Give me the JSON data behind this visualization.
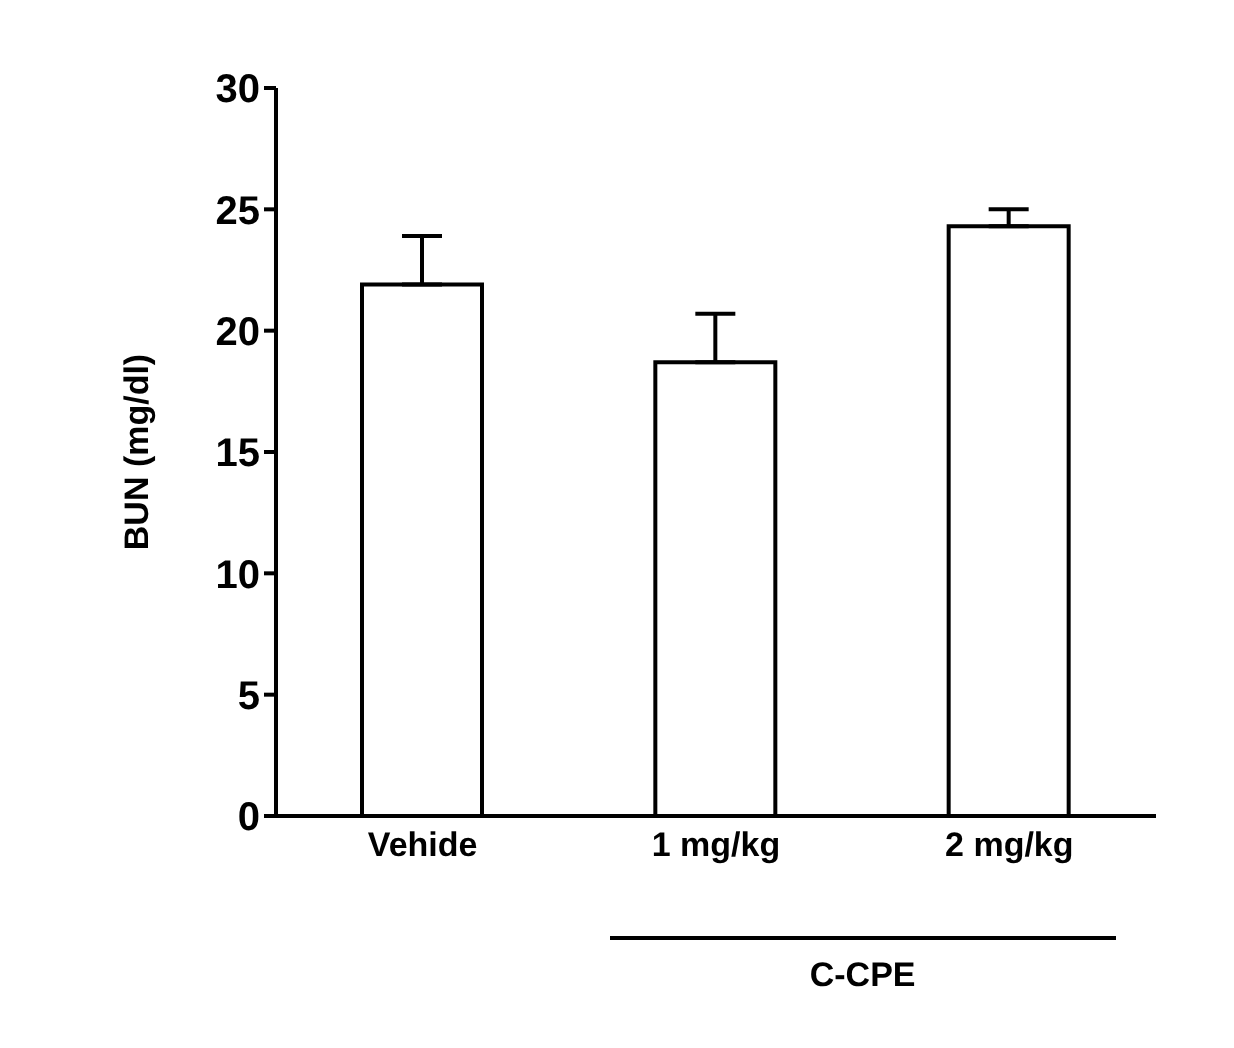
{
  "chart_data": {
    "type": "bar",
    "ylabel": "BUN (mg/dl)",
    "categories": [
      "Vehide",
      "1 mg/kg",
      "2 mg/kg"
    ],
    "values": [
      21.9,
      18.7,
      24.3
    ],
    "errors": [
      [
        21.9,
        23.9
      ],
      [
        18.7,
        20.7
      ],
      [
        24.3,
        25.0
      ]
    ],
    "color": "#ffffff",
    "ylim": [
      0,
      30
    ],
    "yticks": [
      0,
      5,
      10,
      15,
      20,
      25,
      30
    ],
    "grid": false,
    "annotations": [
      "C-CPE"
    ]
  }
}
